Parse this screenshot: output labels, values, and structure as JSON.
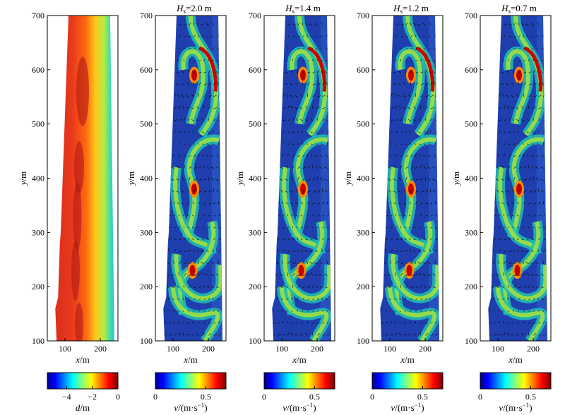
{
  "chart_data": {
    "type": "heatmap",
    "panel_titles": [
      "",
      "Hs=2.0 m",
      "Hs=1.4 m",
      "Hs=1.2 m",
      "Hs=0.7 m"
    ],
    "panels": [
      {
        "id": "depth",
        "title_html": "",
        "variable": "d",
        "xlabel": "x/m",
        "ylabel": "y/m"
      },
      {
        "id": "hs20",
        "title_html": "<tspan font-style='italic'>H</tspan><tspan font-size='9' dy='3'>s</tspan><tspan dy='-3'>=2.0 m</tspan>",
        "variable": "v",
        "xlabel": "x/m",
        "ylabel": "y/m"
      },
      {
        "id": "hs14",
        "title_html": "<tspan font-style='italic'>H</tspan><tspan font-size='9' dy='3'>s</tspan><tspan dy='-3'>=1.4 m</tspan>",
        "variable": "v",
        "xlabel": "x/m",
        "ylabel": "y/m"
      },
      {
        "id": "hs12",
        "title_html": "<tspan font-style='italic'>H</tspan><tspan font-size='9' dy='3'>s</tspan><tspan dy='-3'>=1.2 m</tspan>",
        "variable": "v",
        "xlabel": "x/m",
        "ylabel": "y/m"
      },
      {
        "id": "hs07",
        "title_html": "<tspan font-style='italic'>H</tspan><tspan font-size='9' dy='3'>s</tspan><tspan dy='-3'>=0.7 m</tspan>",
        "variable": "v",
        "xlabel": "x/m",
        "ylabel": "y/m"
      }
    ],
    "xlim": [
      50,
      250
    ],
    "ylim": [
      100,
      700
    ],
    "xticks": [
      100,
      200
    ],
    "yticks": [
      100,
      200,
      300,
      400,
      500,
      600,
      700
    ],
    "depth_colorbar": {
      "label": "d/m",
      "range": [
        -5.5,
        0
      ],
      "ticks": [
        -4,
        -2,
        0
      ]
    },
    "velocity_colorbar": {
      "label": "v/(m·s⁻¹)",
      "range": [
        0,
        0.7
      ],
      "ticks": [
        0,
        0.5
      ]
    },
    "colormap": "jet",
    "rip_current_features": [
      {
        "name": "rip-current-north",
        "y": 590,
        "x": 160
      },
      {
        "name": "rip-current-middle",
        "y": 380,
        "x": 160
      },
      {
        "name": "rip-current-south",
        "y": 230,
        "x": 155
      }
    ]
  }
}
